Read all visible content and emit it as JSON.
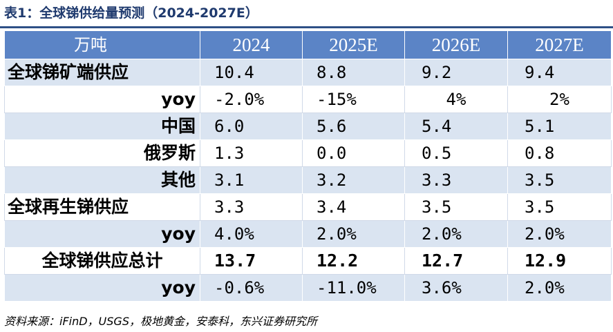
{
  "title": "表1：全球锑供给量预测（2024-2027E）",
  "table": {
    "header": [
      "万吨",
      "2024",
      "2025E",
      "2026E",
      "2027E"
    ],
    "rows": [
      {
        "label": "全球锑矿端供应",
        "values": [
          "10.4",
          "8.8",
          "9.2",
          "9.4"
        ]
      },
      {
        "label": "yoy",
        "values": [
          "-2.0%",
          "-15%",
          "4%",
          "2%"
        ]
      },
      {
        "label": "中国",
        "values": [
          "6.0",
          "5.6",
          "5.4",
          "5.1"
        ]
      },
      {
        "label": "俄罗斯",
        "values": [
          "1.3",
          "0.0",
          "0.5",
          "0.8"
        ]
      },
      {
        "label": "其他",
        "values": [
          "3.1",
          "3.2",
          "3.3",
          "3.5"
        ]
      },
      {
        "label": "全球再生锑供应",
        "values": [
          "3.3",
          "3.4",
          "3.5",
          "3.5"
        ]
      },
      {
        "label": "yoy",
        "values": [
          "4.0%",
          "2.0%",
          "2.0%",
          "2.0%"
        ]
      },
      {
        "label": "全球锑供应总计",
        "values": [
          "13.7",
          "12.2",
          "12.7",
          "12.9"
        ]
      },
      {
        "label": "yoy",
        "values": [
          "-0.6%",
          "-11.0%",
          "3.6%",
          "2.0%"
        ]
      }
    ]
  },
  "source": "资料来源：iFinD，USGS，极地黄金，安泰科，东兴证券研究所"
}
